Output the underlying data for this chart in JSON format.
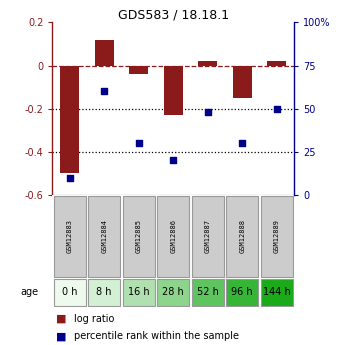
{
  "title": "GDS583 / 18.18.1",
  "samples": [
    "GSM12883",
    "GSM12884",
    "GSM12885",
    "GSM12886",
    "GSM12887",
    "GSM12888",
    "GSM12889"
  ],
  "ages": [
    "0 h",
    "8 h",
    "16 h",
    "28 h",
    "52 h",
    "96 h",
    "144 h"
  ],
  "log_ratio": [
    -0.5,
    0.12,
    -0.04,
    -0.23,
    0.02,
    -0.15,
    0.02
  ],
  "percentile_rank": [
    10,
    60,
    30,
    20,
    48,
    30,
    50
  ],
  "bar_color": "#8B1A1A",
  "dot_color": "#00008B",
  "ylim_left": [
    -0.6,
    0.2
  ],
  "ylim_right": [
    0,
    100
  ],
  "yticks_left": [
    -0.6,
    -0.4,
    -0.2,
    0.0,
    0.2
  ],
  "yticks_right": [
    0,
    25,
    50,
    75,
    100
  ],
  "ytick_labels_right": [
    "0",
    "25",
    "50",
    "75",
    "100%"
  ],
  "hline_y": 0.0,
  "dotted_lines": [
    -0.2,
    -0.4
  ],
  "age_colors": [
    "#edfaed",
    "#d4f0d4",
    "#b0e0b0",
    "#8dd48d",
    "#5ec45e",
    "#36b536",
    "#1aaa1a"
  ],
  "legend_log_ratio": "log ratio",
  "legend_percentile": "percentile rank within the sample",
  "bar_width": 0.55
}
